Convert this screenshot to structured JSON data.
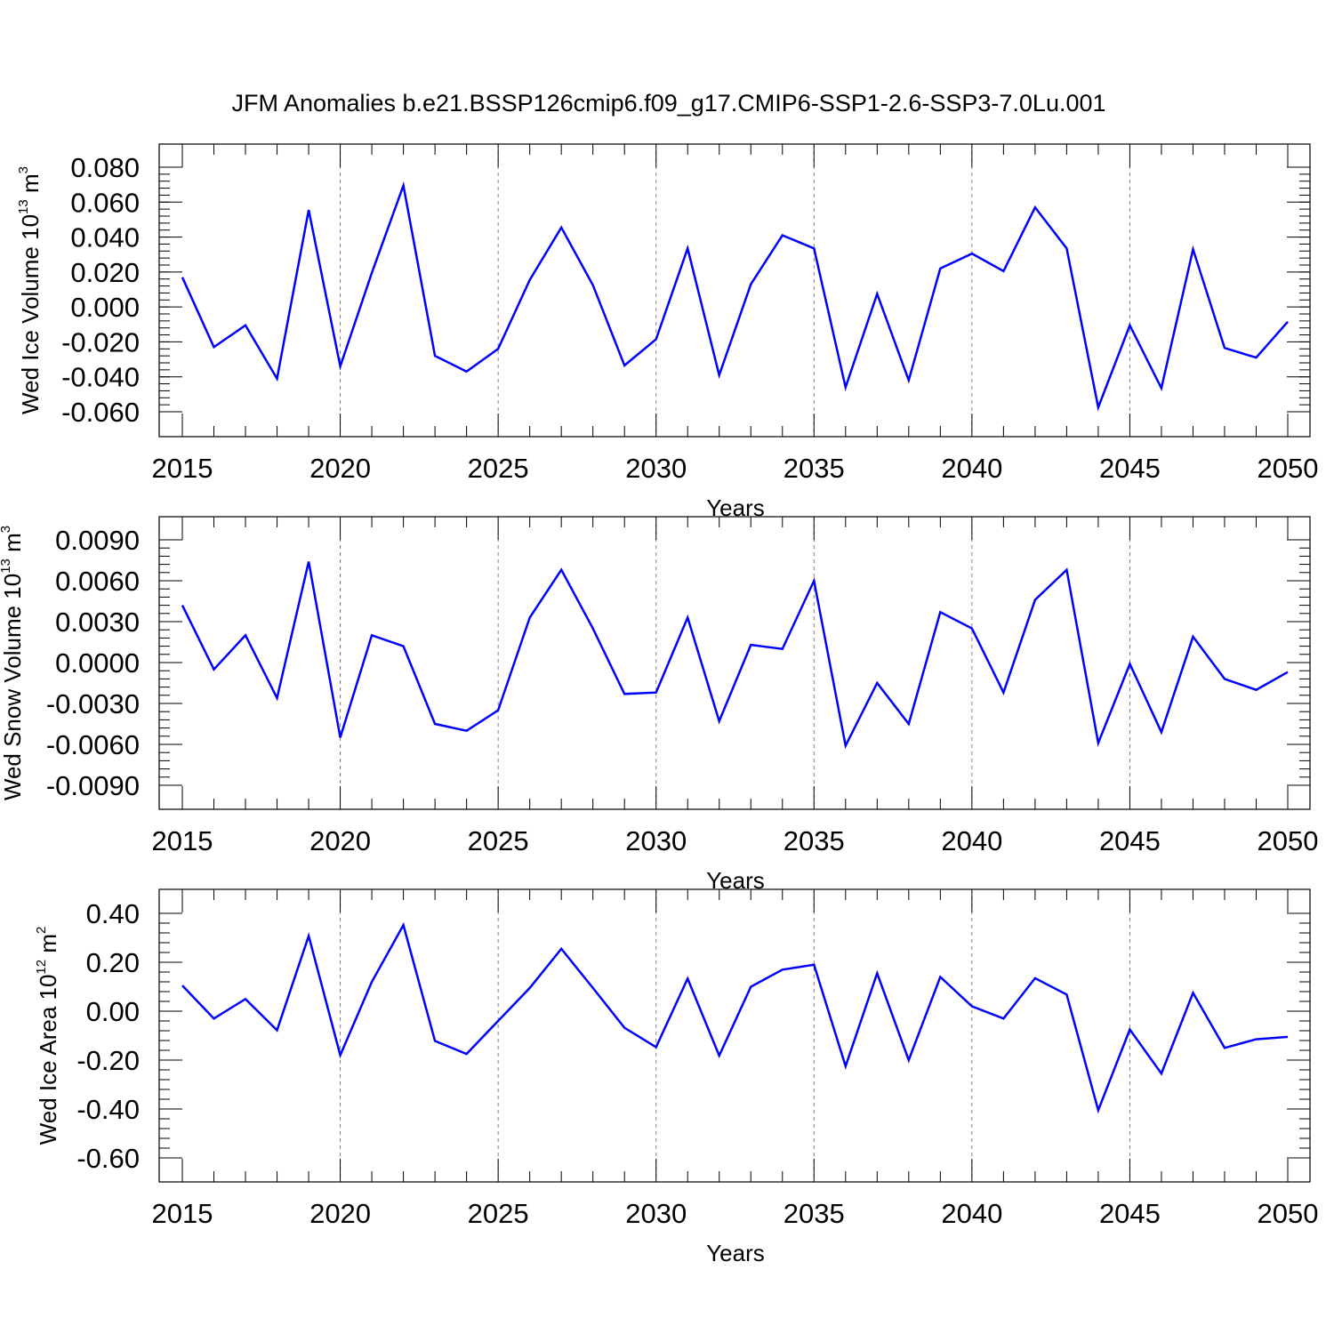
{
  "figure": {
    "title": "JFM Anomalies b.e21.BSSP126cmip6.f09_g17.CMIP6-SSP1-2.6-SSP3-7.0Lu.001"
  },
  "colors": {
    "line": "#0000ff",
    "axes": "#000000",
    "grid": "#808080"
  },
  "chart_data": [
    {
      "type": "line",
      "xlabel": "Years",
      "ylabel_main": "Wed Ice Volume 10",
      "ylabel_exp": "13",
      "ylabel_unit": " m",
      "ylabel_unit_exp": "3",
      "xlim": [
        2015,
        2050
      ],
      "ylim": [
        -0.06,
        0.08
      ],
      "x_tick_labels": [
        "2015",
        "2020",
        "2025",
        "2030",
        "2035",
        "2040",
        "2045",
        "2050"
      ],
      "y_ticks": [
        0.08,
        0.06,
        0.04,
        0.02,
        0.0,
        -0.02,
        -0.04,
        -0.06
      ],
      "y_tick_labels": [
        "0.080",
        "0.060",
        "0.040",
        "0.020",
        "0.000",
        "-0.020",
        "-0.040",
        "-0.060"
      ],
      "vertical_grid": [
        2020,
        2025,
        2030,
        2035,
        2040,
        2045
      ],
      "x": [
        2015,
        2016,
        2017,
        2018,
        2019,
        2020,
        2021,
        2022,
        2023,
        2024,
        2025,
        2026,
        2027,
        2028,
        2029,
        2030,
        2031,
        2032,
        2033,
        2034,
        2035,
        2036,
        2037,
        2038,
        2039,
        2040,
        2041,
        2042,
        2043,
        2044,
        2045,
        2046,
        2047,
        2048,
        2049,
        2050
      ],
      "y": [
        0.017,
        -0.023,
        -0.0105,
        -0.041,
        0.0555,
        -0.034,
        0.0195,
        0.0695,
        -0.028,
        -0.037,
        -0.024,
        0.0155,
        0.0455,
        0.0125,
        -0.0335,
        -0.0185,
        0.0335,
        -0.039,
        0.013,
        0.041,
        0.0335,
        -0.046,
        0.0075,
        -0.042,
        0.022,
        0.0305,
        0.0205,
        0.057,
        0.0335,
        -0.0575,
        -0.0105,
        -0.0465,
        0.033,
        -0.0235,
        -0.029,
        -0.0085
      ]
    },
    {
      "type": "line",
      "xlabel": "Years",
      "ylabel_main": "Wed Snow Volume 10",
      "ylabel_exp": "13",
      "ylabel_unit": " m",
      "ylabel_unit_exp": "3",
      "xlim": [
        2015,
        2050
      ],
      "ylim": [
        -0.009,
        0.009
      ],
      "x_tick_labels": [
        "2015",
        "2020",
        "2025",
        "2030",
        "2035",
        "2040",
        "2045",
        "2050"
      ],
      "y_ticks": [
        0.009,
        0.006,
        0.003,
        0.0,
        -0.003,
        -0.006,
        -0.009
      ],
      "y_tick_labels": [
        "0.0090",
        "0.0060",
        "0.0030",
        "0.0000",
        "-0.0030",
        "-0.0060",
        "-0.0090"
      ],
      "vertical_grid": [
        2020,
        2025,
        2030,
        2035,
        2040,
        2045
      ],
      "x": [
        2015,
        2016,
        2017,
        2018,
        2019,
        2020,
        2021,
        2022,
        2023,
        2024,
        2025,
        2026,
        2027,
        2028,
        2029,
        2030,
        2031,
        2032,
        2033,
        2034,
        2035,
        2036,
        2037,
        2038,
        2039,
        2040,
        2041,
        2042,
        2043,
        2044,
        2045,
        2046,
        2047,
        2048,
        2049,
        2050
      ],
      "y": [
        0.0042,
        -0.0005,
        0.002,
        -0.0026,
        0.0074,
        -0.0055,
        0.002,
        0.0012,
        -0.0045,
        -0.005,
        -0.0035,
        0.0033,
        0.0068,
        0.0025,
        -0.0023,
        -0.0022,
        0.0033,
        -0.0043,
        0.0013,
        0.001,
        0.006,
        -0.0061,
        -0.0015,
        -0.0045,
        0.0037,
        0.0025,
        -0.0022,
        0.0046,
        0.0068,
        -0.0059,
        -0.0001,
        -0.0051,
        0.0019,
        -0.0012,
        -0.002,
        -0.0007
      ]
    },
    {
      "type": "line",
      "xlabel": "Years",
      "ylabel_main": "Wed Ice Area 10",
      "ylabel_exp": "12",
      "ylabel_unit": " m",
      "ylabel_unit_exp": "2",
      "xlim": [
        2015,
        2050
      ],
      "ylim": [
        -0.6,
        0.4
      ],
      "x_tick_labels": [
        "2015",
        "2020",
        "2025",
        "2030",
        "2035",
        "2040",
        "2045",
        "2050"
      ],
      "y_ticks": [
        0.4,
        0.2,
        0.0,
        -0.2,
        -0.4,
        -0.6
      ],
      "y_tick_labels": [
        "0.40",
        "0.20",
        "0.00",
        "-0.20",
        "-0.40",
        "-0.60"
      ],
      "vertical_grid": [
        2020,
        2025,
        2030,
        2035,
        2040,
        2045
      ],
      "x": [
        2015,
        2016,
        2017,
        2018,
        2019,
        2020,
        2021,
        2022,
        2023,
        2024,
        2025,
        2026,
        2027,
        2028,
        2029,
        2030,
        2031,
        2032,
        2033,
        2034,
        2035,
        2036,
        2037,
        2038,
        2039,
        2040,
        2041,
        2042,
        2043,
        2044,
        2045,
        2046,
        2047,
        2048,
        2049,
        2050
      ],
      "y": [
        0.105,
        -0.03,
        0.05,
        -0.078,
        0.308,
        -0.18,
        0.12,
        0.352,
        -0.122,
        -0.175,
        -0.04,
        0.095,
        0.255,
        0.095,
        -0.068,
        -0.147,
        0.133,
        -0.182,
        0.1,
        0.17,
        0.19,
        -0.225,
        0.155,
        -0.2,
        0.14,
        0.02,
        -0.03,
        0.135,
        0.068,
        -0.405,
        -0.075,
        -0.255,
        0.075,
        -0.15,
        -0.115,
        -0.105
      ]
    }
  ]
}
